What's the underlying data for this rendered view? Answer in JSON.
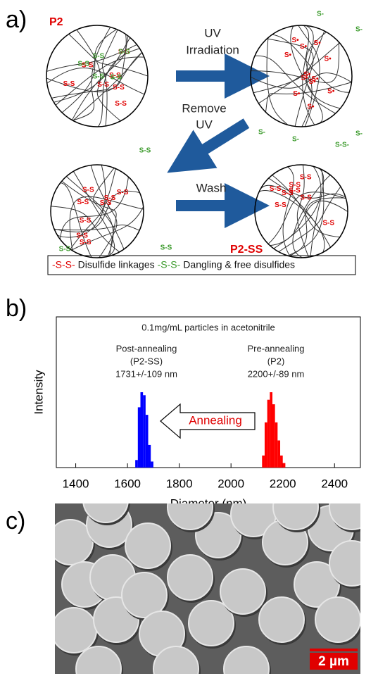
{
  "diagram": {
    "panel_label": "a)",
    "start_label": "P2",
    "end_label": "P2-SS",
    "steps": [
      {
        "lines": [
          "UV",
          "Irradiation"
        ]
      },
      {
        "lines": [
          "Remove",
          "UV"
        ]
      },
      {
        "lines": [
          "Wash"
        ]
      }
    ],
    "circles": [
      {
        "red": [
          "S-S",
          "S-S",
          "S-S",
          "S-S",
          "S-S",
          "S-S",
          "S-S"
        ],
        "green": [
          "S-S",
          "S-S",
          "S-S",
          "S-S",
          "S-S"
        ],
        "outside": []
      },
      {
        "red": [
          "S•",
          "S•",
          "S•",
          "S•",
          "S•",
          "S•",
          "S•",
          "S•",
          "S•",
          "S•",
          "S•",
          "S•"
        ],
        "green": [],
        "outside": [
          "S-",
          "S-",
          "S-",
          "S-",
          "S-S-",
          "S-"
        ]
      },
      {
        "red": [
          "S-S",
          "S-S",
          "S-S",
          "S-S",
          "S-S",
          "S-S",
          "S-S",
          "S-S"
        ],
        "green": [],
        "outside": [
          "S-S",
          "S-S",
          "S-S"
        ]
      },
      {
        "red": [
          "S-S",
          "S-S",
          "S-S",
          "S-S",
          "S-S",
          "S-S",
          "S-S",
          "S-S"
        ],
        "green": [],
        "outside": []
      }
    ],
    "legend": [
      {
        "symbol": "-S-S-",
        "color": "#e00000",
        "text": "Disulfide linkages"
      },
      {
        "symbol": "-S-S-",
        "color": "#3a9a2a",
        "text": "Dangling & free disulfides"
      }
    ]
  },
  "chart_data": {
    "type": "histogram",
    "panel_label": "b)",
    "annotations": [
      "0.1mg/mL particles in acetonitrile",
      "Post-annealing",
      "(P2-SS)",
      "1731+/-109 nm",
      "Pre-annealing",
      "(P2)",
      "2200+/-89 nm",
      "Annealing"
    ],
    "xlabel": "Diameter (nm)",
    "ylabel": "Intensity",
    "xlim": [
      1325,
      2500
    ],
    "xticks": [
      1400,
      1600,
      1800,
      2000,
      2200,
      2400
    ],
    "ylim": [
      0,
      100
    ],
    "series": [
      {
        "color": "#0000ff",
        "bins": [
          1630,
          1640,
          1650,
          1660,
          1670,
          1680,
          1690,
          1700
        ],
        "values": [
          5,
          40,
          50,
          48,
          35,
          15,
          4
        ]
      },
      {
        "color": "#ff0000",
        "bins": [
          2120,
          2130,
          2140,
          2150,
          2160,
          2170,
          2180,
          2190,
          2200,
          2210
        ],
        "values": [
          8,
          30,
          45,
          50,
          42,
          30,
          18,
          8,
          3
        ]
      }
    ]
  },
  "micrograph": {
    "panel_label": "c)",
    "scale_bar": "2 µm"
  }
}
